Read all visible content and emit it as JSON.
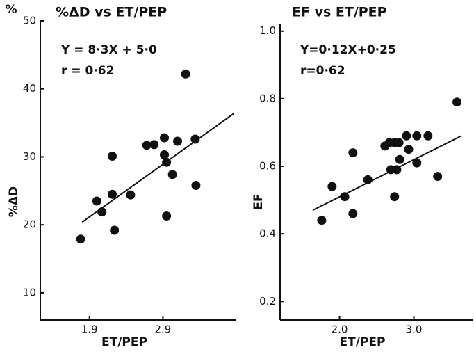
{
  "chart_data": [
    {
      "type": "scatter",
      "title": "%ΔD vs ET/PEP",
      "annotations": [
        "Y = 8·3X + 5·0",
        "r = 0·62"
      ],
      "ylabel": "%ΔD",
      "yunit": "%",
      "xlabel": "ET/PEP",
      "color": "#111111",
      "x": [
        1.78,
        2.0,
        2.07,
        2.21,
        2.21,
        2.24,
        2.46,
        2.68,
        2.78,
        2.92,
        2.92,
        2.95,
        3.03,
        2.95,
        3.1,
        3.21,
        3.34,
        3.35
      ],
      "values": [
        17.9,
        23.5,
        21.9,
        30.1,
        24.5,
        19.2,
        24.4,
        31.7,
        31.8,
        32.8,
        30.3,
        29.2,
        27.4,
        21.3,
        32.3,
        42.2,
        32.6,
        25.8
      ],
      "fit_line": {
        "x": [
          1.8,
          3.87
        ],
        "y": [
          20.4,
          36.4
        ]
      },
      "xlim": [
        1.23,
        3.9
      ],
      "xticks": [
        1.9,
        2.9
      ],
      "ylim": [
        6,
        50
      ],
      "yticks": [
        10,
        20,
        30,
        40,
        50
      ]
    },
    {
      "type": "scatter",
      "title": "EF vs ET/PEP",
      "annotations": [
        "Y=0·12X+0·25",
        "r=0·62"
      ],
      "ylabel": "EF",
      "xlabel": "ET/PEP",
      "color": "#111111",
      "x": [
        1.76,
        1.9,
        2.07,
        2.18,
        2.18,
        2.38,
        2.61,
        2.67,
        2.74,
        2.8,
        2.69,
        2.74,
        2.77,
        2.81,
        2.9,
        2.93,
        3.04,
        3.04,
        3.19,
        3.32,
        3.58
      ],
      "values": [
        0.44,
        0.54,
        0.51,
        0.46,
        0.64,
        0.56,
        0.66,
        0.67,
        0.67,
        0.67,
        0.59,
        0.51,
        0.59,
        0.62,
        0.69,
        0.65,
        0.69,
        0.61,
        0.69,
        0.57,
        0.79
      ],
      "fit_line": {
        "x": [
          1.64,
          3.64
        ],
        "y": [
          0.47,
          0.69
        ]
      },
      "xlim": [
        1.2,
        3.79
      ],
      "xticks": [
        {
          "value": 2.0,
          "label": "2.0"
        },
        {
          "value": 3.0,
          "label": "3.0"
        }
      ],
      "ylim": [
        0.145,
        1.02
      ],
      "yticks": [
        0.2,
        0.4,
        0.6,
        0.8,
        {
          "value": 1.0,
          "label": "1.0"
        }
      ]
    }
  ]
}
